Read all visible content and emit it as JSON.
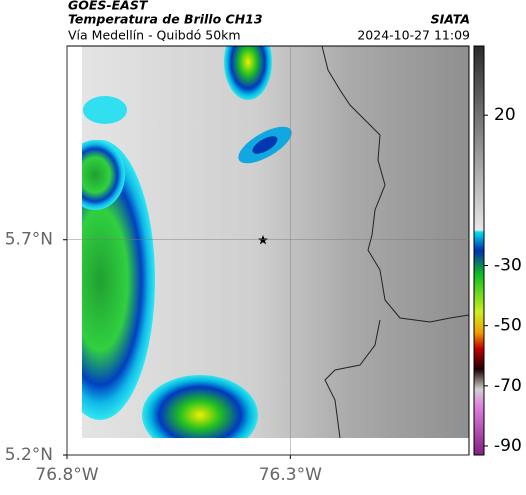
{
  "header": {
    "title": "GOES-EAST",
    "subtitle": "Temperatura de Brillo CH13",
    "route": "Vía Medellín - Quibdó 50km",
    "source": "SIATA",
    "datetime": "2024-10-27 11:09"
  },
  "axes": {
    "xlim": [
      -76.8,
      -75.9
    ],
    "ylim": [
      5.2,
      6.15
    ],
    "xticks": [
      {
        "value": -76.8,
        "label": "76.8°W"
      },
      {
        "value": -76.3,
        "label": "76.3°W"
      }
    ],
    "yticks": [
      {
        "value": 5.2,
        "label": "5.2°N"
      },
      {
        "value": 5.7,
        "label": "5.7°N"
      }
    ]
  },
  "colorbar": {
    "lim": [
      -93,
      43
    ],
    "ticks": [
      20,
      -30,
      -50,
      -70,
      -90
    ]
  }
}
